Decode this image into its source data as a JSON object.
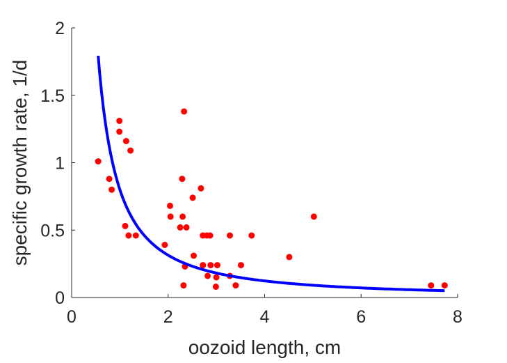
{
  "chart_data": {
    "type": "scatter",
    "title": "",
    "xlabel": "oozoid length, cm",
    "ylabel": "specific growth rate, 1/d",
    "xlim": [
      0,
      8
    ],
    "ylim": [
      0,
      2
    ],
    "xticks": [
      "0",
      "2",
      "4",
      "6",
      "8"
    ],
    "yticks": [
      "0",
      "0.5",
      "1",
      "1.5",
      "2"
    ],
    "xtick_values": [
      0,
      2,
      4,
      6,
      8
    ],
    "ytick_values": [
      0,
      0.5,
      1,
      1.5,
      2
    ],
    "grid": false,
    "box": "left-bottom",
    "series": [
      {
        "kind": "scatter",
        "color": "#ff0000",
        "points": [
          [
            0.55,
            1.01
          ],
          [
            0.78,
            0.88
          ],
          [
            0.83,
            0.8
          ],
          [
            0.99,
            1.31
          ],
          [
            0.99,
            1.23
          ],
          [
            1.13,
            1.16
          ],
          [
            1.22,
            1.09
          ],
          [
            1.11,
            0.53
          ],
          [
            1.18,
            0.46
          ],
          [
            1.33,
            0.46
          ],
          [
            1.93,
            0.39
          ],
          [
            2.04,
            0.68
          ],
          [
            2.05,
            0.6
          ],
          [
            2.25,
            0.52
          ],
          [
            2.29,
            0.88
          ],
          [
            2.3,
            0.6
          ],
          [
            2.33,
            1.38
          ],
          [
            2.38,
            0.52
          ],
          [
            2.51,
            0.74
          ],
          [
            2.53,
            0.31
          ],
          [
            2.68,
            0.81
          ],
          [
            2.72,
            0.46
          ],
          [
            2.8,
            0.46
          ],
          [
            2.87,
            0.46
          ],
          [
            2.72,
            0.24
          ],
          [
            2.82,
            0.16
          ],
          [
            2.88,
            0.24
          ],
          [
            3.02,
            0.24
          ],
          [
            3.0,
            0.15
          ],
          [
            2.99,
            0.08
          ],
          [
            2.32,
            0.09
          ],
          [
            2.35,
            0.23
          ],
          [
            3.28,
            0.46
          ],
          [
            3.28,
            0.16
          ],
          [
            3.4,
            0.09
          ],
          [
            3.51,
            0.24
          ],
          [
            3.73,
            0.46
          ],
          [
            4.51,
            0.3
          ],
          [
            5.02,
            0.6
          ],
          [
            7.45,
            0.09
          ],
          [
            7.73,
            0.09
          ]
        ]
      },
      {
        "kind": "line",
        "color": "#0000ff",
        "fit": {
          "form": "a / x^b",
          "a": 0.8,
          "b": 1.35
        },
        "x_start": 0.55,
        "x_end": 7.73
      }
    ]
  }
}
